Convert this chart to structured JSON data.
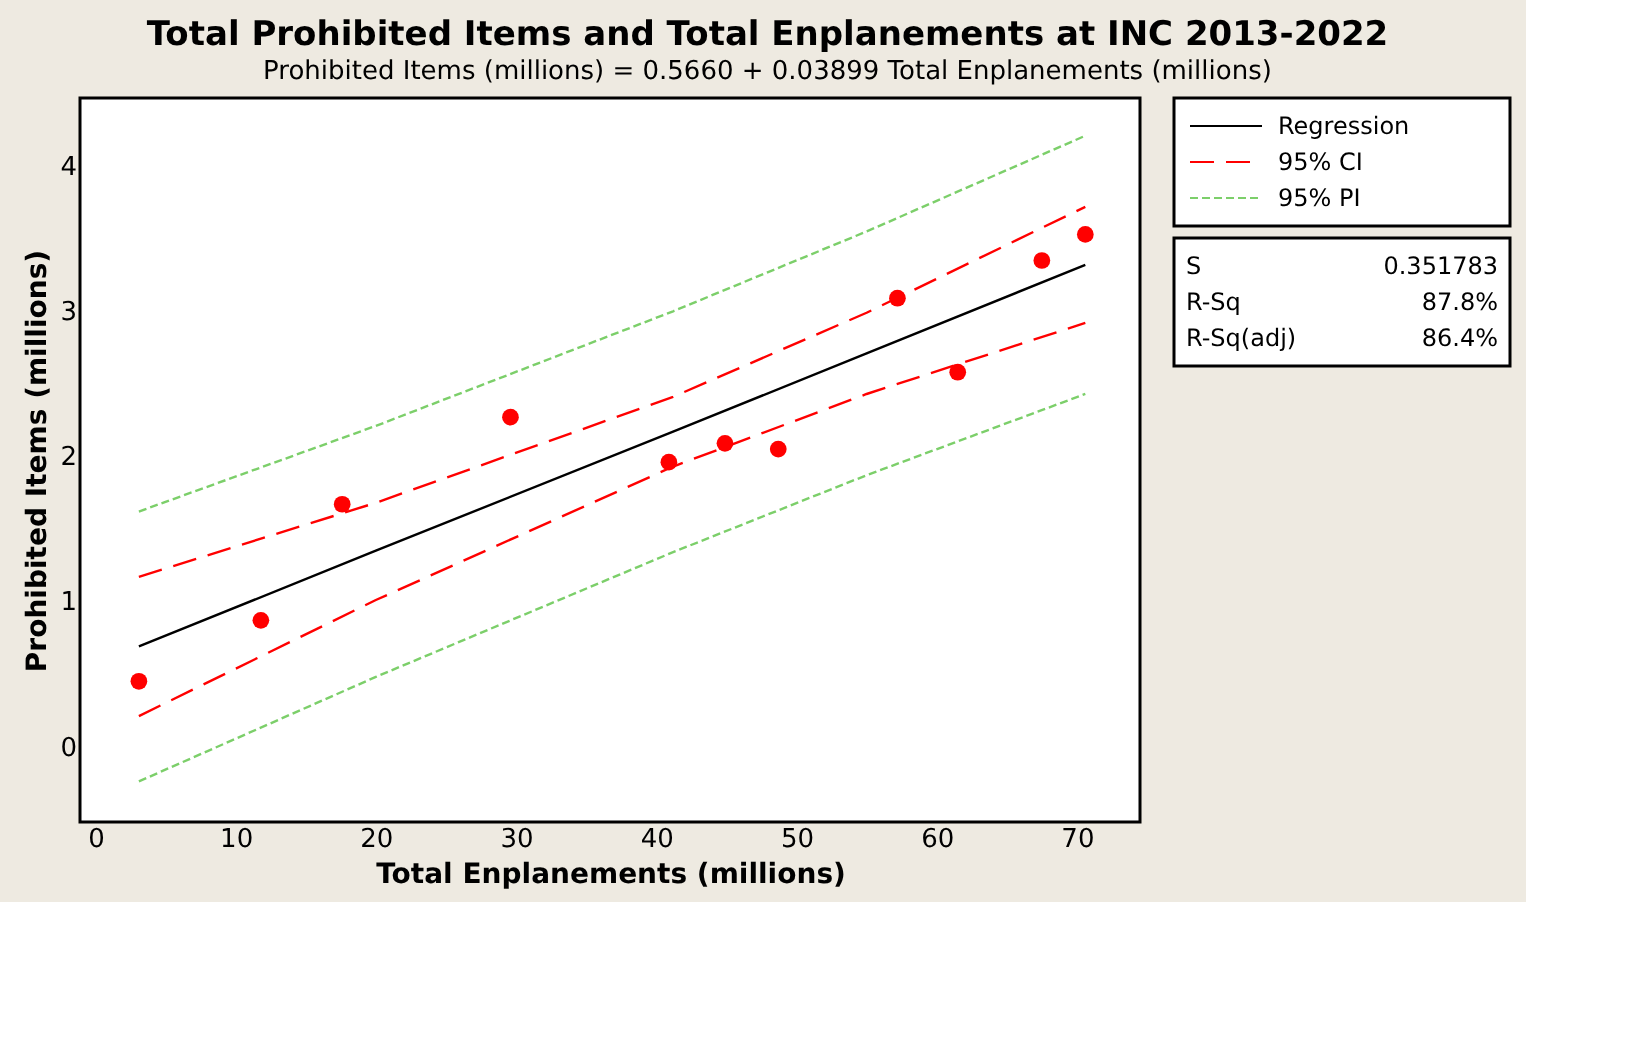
{
  "chart_data": {
    "type": "line",
    "title": "Total Prohibited Items and Total Enplanements at INC 2013-2022",
    "subtitle": "Prohibited Items (millions) =  0.5660 + 0.03899 Total Enplanements (millions)",
    "xlabel": "Total Enplanements (millions)",
    "ylabel": "Prohibited Items (millions)",
    "xlim": [
      -1.1,
      74.5
    ],
    "ylim": [
      -0.52,
      4.47
    ],
    "xticks": [
      0,
      10,
      20,
      30,
      40,
      50,
      60,
      70
    ],
    "yticks": [
      0,
      1,
      2,
      3,
      4
    ],
    "grid": false,
    "legend": "right",
    "annotations": [
      "S",
      "0.351783",
      "R-Sq",
      "87.8%",
      "R-Sq(adj)",
      "86.4%"
    ],
    "series": [
      {
        "type": "scatter",
        "marker": "circle",
        "color": "#ff0000",
        "x": [
          3.1,
          11.8,
          17.6,
          29.6,
          40.9,
          44.9,
          48.7,
          57.2,
          61.5,
          67.5,
          70.6
        ],
        "values": [
          0.45,
          0.87,
          1.67,
          2.27,
          1.96,
          2.09,
          2.05,
          3.09,
          2.58,
          3.35,
          3.53
        ]
      },
      {
        "name": "Regression",
        "color": "#000000",
        "line_style": "solid",
        "x": [
          3.1,
          20,
          41.2,
          55,
          70.6
        ],
        "values": [
          0.69,
          1.35,
          2.17,
          2.71,
          3.32
        ]
      },
      {
        "name": "95% CI",
        "color": "#ff0000",
        "line_style": "dashed",
        "x": [
          3.1,
          20,
          41.2,
          55,
          70.6
        ],
        "values": [
          1.17,
          1.68,
          2.41,
          2.99,
          3.72
        ]
      },
      {
        "color": "#ff0000",
        "line_style": "dashed",
        "x": [
          3.1,
          20,
          41.2,
          55,
          70.6
        ],
        "values": [
          0.21,
          1.01,
          1.93,
          2.43,
          2.92
        ]
      },
      {
        "name": "95% PI",
        "color": "#7ccf6a",
        "line_style": "dotted",
        "x": [
          3.1,
          20,
          41.2,
          55,
          70.6
        ],
        "values": [
          1.62,
          2.21,
          3.0,
          3.55,
          4.21
        ]
      },
      {
        "color": "#7ccf6a",
        "line_style": "dotted",
        "x": [
          3.1,
          20,
          41.2,
          55,
          70.6
        ],
        "values": [
          -0.24,
          0.48,
          1.34,
          1.87,
          2.43
        ]
      }
    ]
  }
}
